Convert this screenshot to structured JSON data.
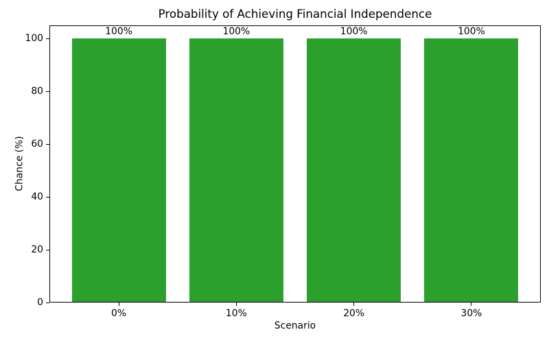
{
  "chart_data": {
    "type": "bar",
    "title": "Probability of Achieving Financial Independence",
    "xlabel": "Scenario",
    "ylabel": "Chance (%)",
    "categories": [
      "0%",
      "10%",
      "20%",
      "30%"
    ],
    "values": [
      100,
      100,
      100,
      100
    ],
    "bar_labels": [
      "100%",
      "100%",
      "100%",
      "100%"
    ],
    "yticks": [
      0,
      20,
      40,
      60,
      80,
      100
    ],
    "ylim": [
      0,
      105
    ],
    "bar_color": "#2ca02c",
    "grid": false,
    "legend": false
  }
}
